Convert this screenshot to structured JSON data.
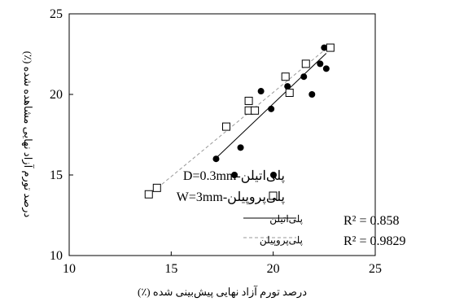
{
  "chart_data": {
    "type": "scatter",
    "xlabel": "درصد تورم آزاد نهایی پیش‌بینی شده (٪)",
    "ylabel": "درصد تورم آزاد نهایی مشاهده شده (٪)",
    "xlim": [
      10,
      25
    ],
    "ylim": [
      10,
      25
    ],
    "x_ticks": [
      "10",
      "15",
      "20",
      "25"
    ],
    "y_ticks": [
      "10",
      "15",
      "20",
      "25"
    ],
    "grid": false,
    "legend_position": "bottom-right",
    "series": [
      {
        "name": "پلی‌اتیلن-D=0.3mm",
        "marker": "filled-circle",
        "color": "#000000",
        "points": [
          [
            17.2,
            16.0
          ],
          [
            18.1,
            15.0
          ],
          [
            18.4,
            16.7
          ],
          [
            19.4,
            20.2
          ],
          [
            19.9,
            19.1
          ],
          [
            20.7,
            20.5
          ],
          [
            21.5,
            21.1
          ],
          [
            21.9,
            20.0
          ],
          [
            22.3,
            21.9
          ],
          [
            22.5,
            22.9
          ],
          [
            22.6,
            21.6
          ]
        ]
      },
      {
        "name": "پلی‌پروپیلن-W=3mm",
        "marker": "open-square",
        "color": "#000000",
        "points": [
          [
            13.9,
            13.8
          ],
          [
            14.3,
            14.2
          ],
          [
            17.7,
            18.0
          ],
          [
            18.8,
            19.6
          ],
          [
            18.8,
            19.0
          ],
          [
            19.1,
            19.0
          ],
          [
            20.6,
            21.1
          ],
          [
            20.8,
            20.1
          ],
          [
            21.6,
            21.9
          ],
          [
            22.8,
            22.9
          ]
        ]
      }
    ],
    "trendlines": [
      {
        "name": "پلی‌اتیلن",
        "r2": "R² = 0.858",
        "style": "solid",
        "color": "#000000",
        "from": [
          17.2,
          16.05
        ],
        "to": [
          22.6,
          22.55
        ]
      },
      {
        "name": "پلی‌پروپیلن",
        "r2": "R² = 0.9829",
        "style": "dashed",
        "color": "#999999",
        "from": [
          13.9,
          13.75
        ],
        "to": [
          22.8,
          23.05
        ]
      }
    ]
  }
}
